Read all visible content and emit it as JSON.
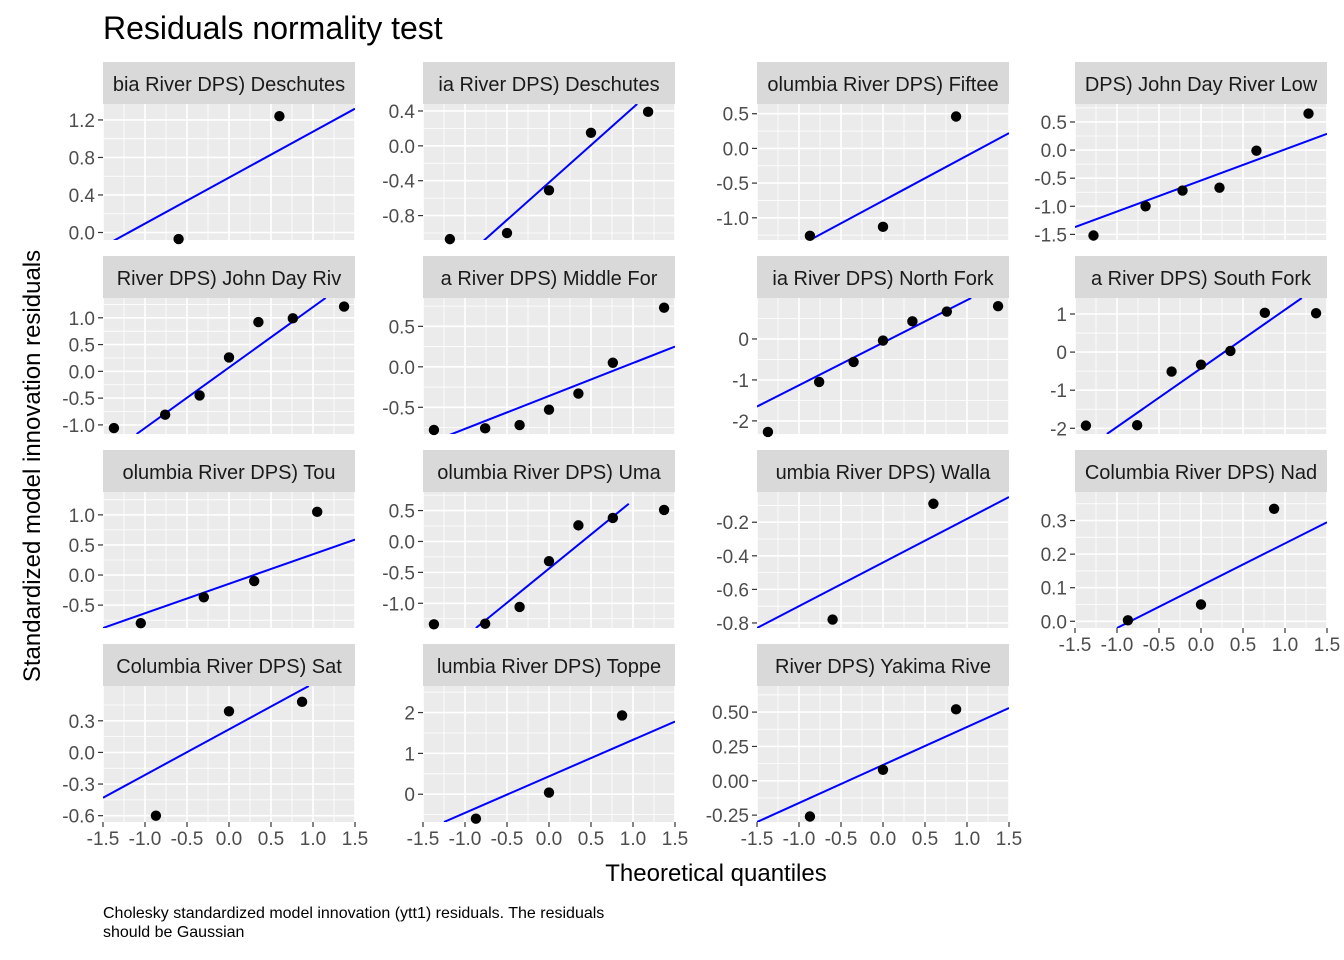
{
  "title": "Residuals normality test",
  "xlabel": "Theoretical quantiles",
  "ylabel": "Standardized model innovation residuals",
  "caption": "Cholesky standardized model innovation (ytt1) residuals. The residuals\nshould be Gaussian",
  "colors": {
    "panel_bg": "#EBEBEB",
    "strip_bg": "#D9D9D9",
    "grid": "#FFFFFF",
    "line": "#0000FF",
    "point": "#000000"
  },
  "chart_data": {
    "type": "scatter",
    "xlim": [
      -1.5,
      1.5
    ],
    "x_ticks": [
      "-1.5",
      "-1.0",
      "-0.5",
      "0.0",
      "0.5",
      "1.0",
      "1.5"
    ],
    "panels": [
      {
        "strip": "bia River DPS) Deschutes",
        "ylim": [
          -0.08,
          1.37
        ],
        "y_ticks": [
          "0.0",
          "0.4",
          "0.8",
          "1.2"
        ],
        "y_tick_values": [
          0.0,
          0.4,
          0.8,
          1.2
        ],
        "points": [
          [
            -0.6,
            -0.07
          ],
          [
            0.6,
            1.24
          ]
        ],
        "qqline": [
          [
            -1.5,
            -0.15
          ],
          [
            1.5,
            1.32
          ]
        ]
      },
      {
        "strip": "ia River DPS) Deschutes",
        "ylim": [
          -1.08,
          0.48
        ],
        "y_ticks": [
          "-0.8",
          "-0.4",
          "0.0",
          "0.4"
        ],
        "y_tick_values": [
          -0.8,
          -0.4,
          0.0,
          0.4
        ],
        "points": [
          [
            -1.18,
            -1.07
          ],
          [
            -0.5,
            -1.0
          ],
          [
            0.0,
            -0.51
          ],
          [
            0.5,
            0.15
          ],
          [
            1.18,
            0.39
          ]
        ],
        "qqline": [
          [
            -0.85,
            -1.15
          ],
          [
            1.05,
            0.48
          ]
        ]
      },
      {
        "strip": "olumbia River DPS) Fiftee",
        "ylim": [
          -1.32,
          0.64
        ],
        "y_ticks": [
          "-1.0",
          "-0.5",
          "0.0",
          "0.5"
        ],
        "y_tick_values": [
          -1.0,
          -0.5,
          0.0,
          0.5
        ],
        "points": [
          [
            -0.87,
            -1.26
          ],
          [
            0.0,
            -1.13
          ],
          [
            0.87,
            0.46
          ]
        ],
        "qqline": [
          [
            -0.87,
            -1.32
          ],
          [
            1.5,
            0.22
          ]
        ]
      },
      {
        "strip": "DPS) John Day River Low",
        "ylim": [
          -1.6,
          0.82
        ],
        "y_ticks": [
          "-1.5",
          "-1.0",
          "-0.5",
          "0.0",
          "0.5"
        ],
        "y_tick_values": [
          -1.5,
          -1.0,
          -0.5,
          0.0,
          0.5
        ],
        "points": [
          [
            -1.28,
            -1.52
          ],
          [
            -0.66,
            -1.0
          ],
          [
            -0.22,
            -0.72
          ],
          [
            0.22,
            -0.67
          ],
          [
            0.66,
            -0.01
          ],
          [
            1.28,
            0.65
          ]
        ],
        "qqline": [
          [
            -1.5,
            -1.37
          ],
          [
            1.5,
            0.29
          ]
        ]
      },
      {
        "strip": "River DPS) John Day Riv",
        "ylim": [
          -1.17,
          1.37
        ],
        "y_ticks": [
          "-1.0",
          "-0.5",
          "0.0",
          "0.5",
          "1.0"
        ],
        "y_tick_values": [
          -1.0,
          -0.5,
          0.0,
          0.5,
          1.0
        ],
        "points": [
          [
            -1.37,
            -1.06
          ],
          [
            -0.76,
            -0.81
          ],
          [
            -0.35,
            -0.45
          ],
          [
            0.0,
            0.26
          ],
          [
            0.35,
            0.92
          ],
          [
            0.76,
            0.99
          ],
          [
            1.37,
            1.21
          ]
        ],
        "qqline": [
          [
            -1.1,
            -1.17
          ],
          [
            1.15,
            1.37
          ]
        ]
      },
      {
        "strip": "a River DPS) Middle For",
        "ylim": [
          -0.83,
          0.85
        ],
        "y_ticks": [
          "-0.5",
          "0.0",
          "0.5"
        ],
        "y_tick_values": [
          -0.5,
          0.0,
          0.5
        ],
        "points": [
          [
            -1.37,
            -0.78
          ],
          [
            -0.76,
            -0.76
          ],
          [
            -0.35,
            -0.72
          ],
          [
            0.0,
            -0.53
          ],
          [
            0.35,
            -0.33
          ],
          [
            0.76,
            0.05
          ],
          [
            1.37,
            0.73
          ]
        ],
        "qqline": [
          [
            -1.5,
            -0.97
          ],
          [
            1.5,
            0.25
          ]
        ]
      },
      {
        "strip": "ia River DPS) North Fork",
        "ylim": [
          -2.32,
          1.0
        ],
        "y_ticks": [
          "-2",
          "-1",
          "0"
        ],
        "y_tick_values": [
          -2.0,
          -1.0,
          0.0
        ],
        "points": [
          [
            -1.37,
            -2.27
          ],
          [
            -0.76,
            -1.05
          ],
          [
            -0.35,
            -0.56
          ],
          [
            0.0,
            -0.04
          ],
          [
            0.35,
            0.43
          ],
          [
            0.76,
            0.67
          ],
          [
            1.37,
            0.8
          ]
        ],
        "qqline": [
          [
            -1.5,
            -1.65
          ],
          [
            1.05,
            1.0
          ]
        ]
      },
      {
        "strip": "a River DPS) South Fork",
        "ylim": [
          -2.15,
          1.42
        ],
        "y_ticks": [
          "-2",
          "-1",
          "0",
          "1"
        ],
        "y_tick_values": [
          -2.0,
          -1.0,
          0.0,
          1.0
        ],
        "points": [
          [
            -1.37,
            -1.93
          ],
          [
            -0.76,
            -1.92
          ],
          [
            -0.35,
            -0.51
          ],
          [
            0.0,
            -0.33
          ],
          [
            0.35,
            0.03
          ],
          [
            0.76,
            1.03
          ],
          [
            1.37,
            1.02
          ]
        ],
        "qqline": [
          [
            -1.12,
            -2.15
          ],
          [
            1.2,
            1.42
          ]
        ]
      },
      {
        "strip": "olumbia River DPS) Tou",
        "ylim": [
          -0.88,
          1.38
        ],
        "y_ticks": [
          "-0.5",
          "0.0",
          "0.5",
          "1.0"
        ],
        "y_tick_values": [
          -0.5,
          0.0,
          0.5,
          1.0
        ],
        "points": [
          [
            -1.05,
            -0.8
          ],
          [
            -0.3,
            -0.37
          ],
          [
            0.3,
            -0.1
          ],
          [
            1.05,
            1.05
          ]
        ],
        "qqline": [
          [
            -1.5,
            -0.88
          ],
          [
            1.5,
            0.59
          ]
        ]
      },
      {
        "strip": "olumbia River DPS) Uma",
        "ylim": [
          -1.4,
          0.8
        ],
        "y_ticks": [
          "-1.0",
          "-0.5",
          "0.0",
          "0.5"
        ],
        "y_tick_values": [
          -1.0,
          -0.5,
          0.0,
          0.5
        ],
        "points": [
          [
            -1.37,
            -1.34
          ],
          [
            -0.76,
            -1.33
          ],
          [
            -0.35,
            -1.06
          ],
          [
            0.0,
            -0.32
          ],
          [
            0.35,
            0.26
          ],
          [
            0.76,
            0.38
          ],
          [
            1.37,
            0.51
          ]
        ],
        "qqline": [
          [
            -0.87,
            -1.4
          ],
          [
            0.95,
            0.61
          ]
        ]
      },
      {
        "strip": "umbia River DPS) Walla",
        "ylim": [
          -0.83,
          -0.02
        ],
        "y_ticks": [
          "-0.8",
          "-0.6",
          "-0.4",
          "-0.2"
        ],
        "y_tick_values": [
          -0.8,
          -0.6,
          -0.4,
          -0.2
        ],
        "points": [
          [
            -0.6,
            -0.78
          ],
          [
            0.6,
            -0.09
          ]
        ],
        "qqline": [
          [
            -1.5,
            -0.83
          ],
          [
            1.5,
            -0.05
          ]
        ]
      },
      {
        "strip": "Columbia River DPS) Nad",
        "ylim": [
          -0.02,
          0.385
        ],
        "y_ticks": [
          "0.0",
          "0.1",
          "0.2",
          "0.3"
        ],
        "y_tick_values": [
          0.0,
          0.1,
          0.2,
          0.3
        ],
        "points": [
          [
            -0.87,
            0.003
          ],
          [
            0.0,
            0.05
          ],
          [
            0.87,
            0.335
          ]
        ],
        "qqline": [
          [
            -1.0,
            -0.02
          ],
          [
            1.5,
            0.295
          ]
        ]
      },
      {
        "strip": "Columbia River DPS) Sat",
        "ylim": [
          -0.66,
          0.63
        ],
        "y_ticks": [
          "-0.6",
          "-0.3",
          "0.0",
          "0.3"
        ],
        "y_tick_values": [
          -0.6,
          -0.3,
          0.0,
          0.3
        ],
        "points": [
          [
            -0.87,
            -0.6
          ],
          [
            0.0,
            0.39
          ],
          [
            0.87,
            0.48
          ]
        ],
        "qqline": [
          [
            -1.5,
            -0.43
          ],
          [
            0.95,
            0.63
          ]
        ]
      },
      {
        "strip": "lumbia River DPS) Toppe",
        "ylim": [
          -0.68,
          2.65
        ],
        "y_ticks": [
          "0",
          "1",
          "2"
        ],
        "y_tick_values": [
          0.0,
          1.0,
          2.0
        ],
        "points": [
          [
            -0.87,
            -0.6
          ],
          [
            0.0,
            0.04
          ],
          [
            0.87,
            1.93
          ]
        ],
        "qqline": [
          [
            -1.25,
            -0.68
          ],
          [
            1.5,
            1.78
          ]
        ]
      },
      {
        "strip": "River DPS) Yakima Rive",
        "ylim": [
          -0.3,
          0.69
        ],
        "y_ticks": [
          "-0.25",
          "0.00",
          "0.25",
          "0.50"
        ],
        "y_tick_values": [
          -0.25,
          0.0,
          0.25,
          0.5
        ],
        "points": [
          [
            -0.87,
            -0.26
          ],
          [
            0.0,
            0.08
          ],
          [
            0.87,
            0.52
          ]
        ],
        "qqline": [
          [
            -1.5,
            -0.3
          ],
          [
            1.5,
            0.53
          ]
        ]
      }
    ]
  }
}
